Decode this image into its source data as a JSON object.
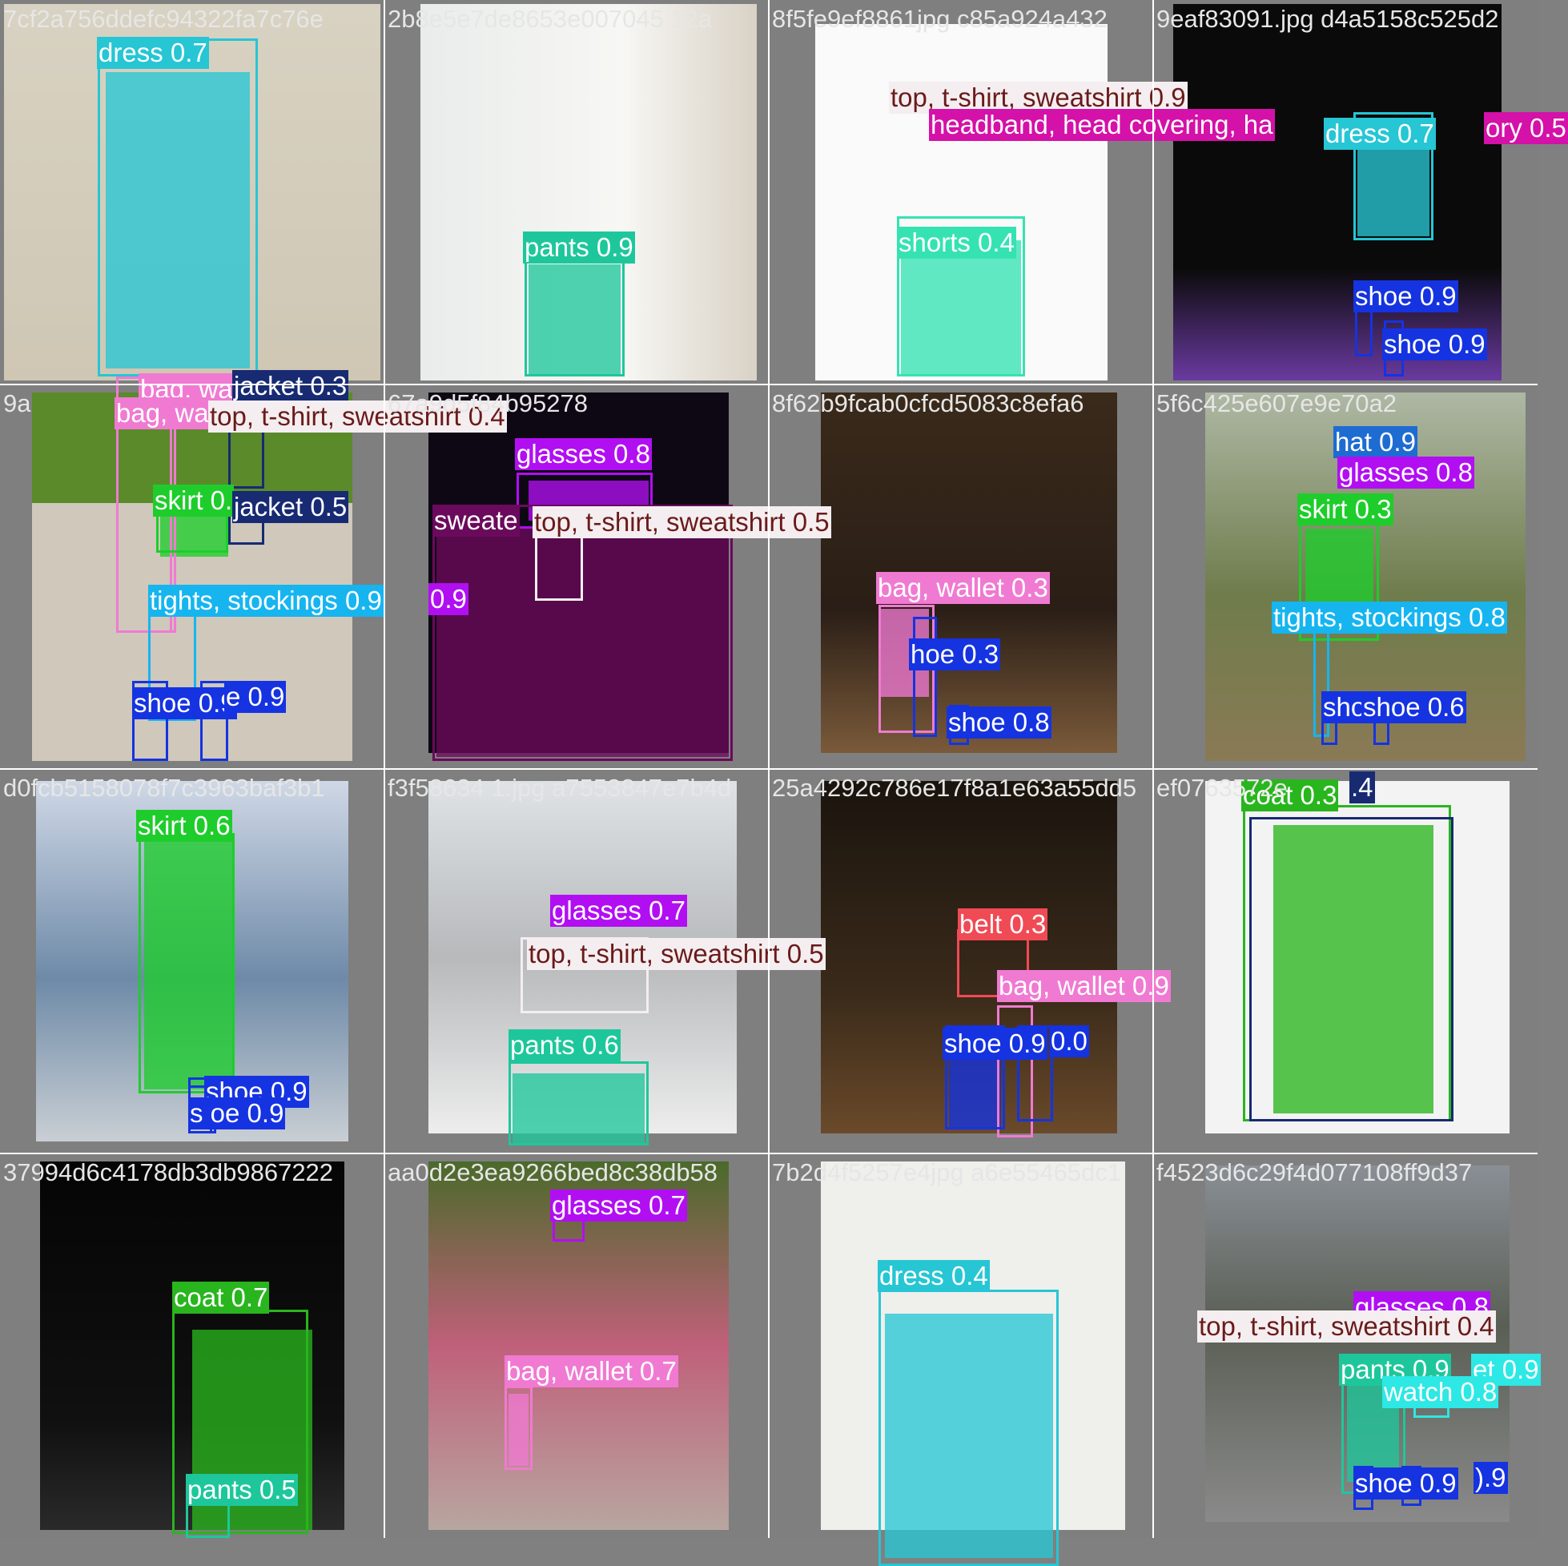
{
  "colors": {
    "dress": "#26c6d4",
    "pants": "#1ec79b",
    "top_tshirt_sweatshirt": "#f4eef0",
    "headband": "#d411a8",
    "shorts": "#35e3b2",
    "shoe": "#1533e0",
    "bag_wallet": "#f07ad2",
    "jacket": "#172a72",
    "skirt": "#1ecd2b",
    "tights_stockings": "#16b5f0",
    "glasses": "#b10ff2",
    "sweater": "#6b0a5c",
    "hat": "#1e6bd2",
    "coat": "#29b51e",
    "belt": "#f04a55",
    "watch": "#2de8e4"
  },
  "tiles": [
    {
      "filename": "7cf2a756ddefc94322fa7c76e",
      "scene": "mannequin-dress",
      "detections": [
        {
          "label": "dress",
          "score": "0.7",
          "cls": "dress"
        }
      ]
    },
    {
      "filename": "2b8e5e7de8653e007045 12a",
      "scene": "woman-crochet-top",
      "detections": [
        {
          "label": "pants",
          "score": "0.9",
          "cls": "pants"
        }
      ]
    },
    {
      "filename": "8f5fe9ef8861jpg c85a924a432",
      "scene": "woman-white-tshirt",
      "detections": [
        {
          "label": "top, t-shirt, sweatshirt",
          "score": "0.9",
          "cls": "top_tshirt_sweatshirt"
        },
        {
          "label": "headband, head covering, ha",
          "score": "",
          "cls": "headband"
        },
        {
          "label": "shorts",
          "score": "0.4",
          "cls": "shorts"
        }
      ]
    },
    {
      "filename": "9eaf83091.jpg d4a5158c525d2",
      "scene": "runway-cape",
      "detections": [
        {
          "label": "dress",
          "score": "0.7",
          "cls": "dress"
        },
        {
          "label": "ory",
          "score": "0.5",
          "cls": "headband"
        },
        {
          "label": "shoe",
          "score": "0.9",
          "cls": "shoe"
        },
        {
          "label": "shoe",
          "score": "0.9",
          "cls": "shoe"
        }
      ]
    },
    {
      "filename": "9a",
      "scene": "street-skirt",
      "detections": [
        {
          "label": "bag, wa",
          "score": "",
          "cls": "bag_wallet"
        },
        {
          "label": "jacket",
          "score": "0.3",
          "cls": "jacket"
        },
        {
          "label": "bag, wa",
          "score": "",
          "cls": "bag_wallet"
        },
        {
          "label": "top, t-shirt, sweatshirt",
          "score": "0.4",
          "cls": "top_tshirt_sweatshirt"
        },
        {
          "label": "skirt",
          "score": "0.",
          "cls": "skirt"
        },
        {
          "label": "jacket",
          "score": "0.5",
          "cls": "jacket"
        },
        {
          "label": "tights, stockings",
          "score": "0.9",
          "cls": "tights_stockings"
        },
        {
          "label": "shoe",
          "score": "0.9",
          "cls": "shoe"
        },
        {
          "label": "e",
          "score": "0.9",
          "cls": "shoe"
        }
      ]
    },
    {
      "filename": "67a9d5f84b95278",
      "scene": "man-sweater",
      "detections": [
        {
          "label": "glasses",
          "score": "0.8",
          "cls": "glasses"
        },
        {
          "label": "sweate",
          "score": "",
          "cls": "sweater"
        },
        {
          "label": "top, t-shirt, sweatshirt",
          "score": "0.5",
          "cls": "top_tshirt_sweatshirt"
        },
        {
          "label": "",
          "score": "0.9",
          "cls": "glasses"
        }
      ]
    },
    {
      "filename": "8f62b9fcab0cfcd5083c8efa6",
      "scene": "two-women-party",
      "detections": [
        {
          "label": "bag, wallet",
          "score": "0.3",
          "cls": "bag_wallet"
        },
        {
          "label": "hoe",
          "score": "0.3",
          "cls": "shoe"
        },
        {
          "label": "shoe",
          "score": "0.8",
          "cls": "shoe"
        }
      ]
    },
    {
      "filename": "5f6c425e607e9e70a2",
      "scene": "umbrella-garden",
      "detections": [
        {
          "label": "hat",
          "score": "0.9",
          "cls": "hat"
        },
        {
          "label": "glasses",
          "score": "0.8",
          "cls": "glasses"
        },
        {
          "label": "skirt",
          "score": "0.3",
          "cls": "skirt"
        },
        {
          "label": "tights, stockings",
          "score": "0.8",
          "cls": "tights_stockings"
        },
        {
          "label": "sho",
          "score": "",
          "cls": "shoe"
        },
        {
          "label": "shoe",
          "score": "0.6",
          "cls": "shoe"
        }
      ]
    },
    {
      "filename": "d0fcb5158078f7c3963baf3b1",
      "scene": "runway-green",
      "detections": [
        {
          "label": "skirt",
          "score": "0.6",
          "cls": "skirt"
        },
        {
          "label": "shoe",
          "score": "0.9",
          "cls": "shoe"
        },
        {
          "label": "s  oe",
          "score": "0.9",
          "cls": "shoe"
        }
      ]
    },
    {
      "filename": "f3f58634 1.jpg a7553847e7b4d",
      "scene": "city-rooftop",
      "detections": [
        {
          "label": "glasses",
          "score": "0.7",
          "cls": "glasses"
        },
        {
          "label": "top, t-shirt, sweatshirt",
          "score": "0.5",
          "cls": "top_tshirt_sweatshirt"
        },
        {
          "label": "pants",
          "score": "0.6",
          "cls": "pants"
        }
      ]
    },
    {
      "filename": "25a4292c786e17f8a1e63a55dd5",
      "scene": "church-fur-coat",
      "detections": [
        {
          "label": "belt",
          "score": "0.3",
          "cls": "belt"
        },
        {
          "label": "bag, wallet",
          "score": "0.9",
          "cls": "bag_wallet"
        },
        {
          "label": "shoe",
          "score": "0.9",
          "cls": "shoe"
        },
        {
          "label": "",
          "score": "0.0",
          "cls": "shoe"
        }
      ]
    },
    {
      "filename": "ef0763572e",
      "scene": "green-blouse-product",
      "detections": [
        {
          "label": "coat",
          "score": "0.3",
          "cls": "coat"
        },
        {
          "label": "",
          "score": ".4",
          "cls": "jacket"
        }
      ]
    },
    {
      "filename": "37994d6c4178db3db9867222",
      "scene": "runway-green-coat",
      "detections": [
        {
          "label": "coat",
          "score": "0.7",
          "cls": "coat"
        },
        {
          "label": "pants",
          "score": "0.5",
          "cls": "pants"
        }
      ]
    },
    {
      "filename": "aa0d2e3ea9266bed8c38db58",
      "scene": "floral-street",
      "detections": [
        {
          "label": "glasses",
          "score": "0.7",
          "cls": "glasses"
        },
        {
          "label": "bag, wallet",
          "score": "0.7",
          "cls": "bag_wallet"
        }
      ]
    },
    {
      "filename": "7b2d4f5257e4jpg a6e55465dc1",
      "scene": "hanging-skirt",
      "detections": [
        {
          "label": "dress",
          "score": "0.4",
          "cls": "dress"
        }
      ]
    },
    {
      "filename": "f4523d6c29f4d077108ff9d37",
      "scene": "church-street",
      "detections": [
        {
          "label": "glasses",
          "score": "0.8",
          "cls": "glasses"
        },
        {
          "label": "top, t-shirt, sweatshirt",
          "score": "0.4",
          "cls": "top_tshirt_sweatshirt"
        },
        {
          "label": "pants",
          "score": "0.9",
          "cls": "pants"
        },
        {
          "label": "et",
          "score": "0.9",
          "cls": "watch"
        },
        {
          "label": "watch",
          "score": "0.8",
          "cls": "watch"
        },
        {
          "label": "shoe",
          "score": "0.9",
          "cls": "shoe"
        },
        {
          "label": "",
          "score": ").9",
          "cls": "shoe"
        }
      ]
    }
  ]
}
